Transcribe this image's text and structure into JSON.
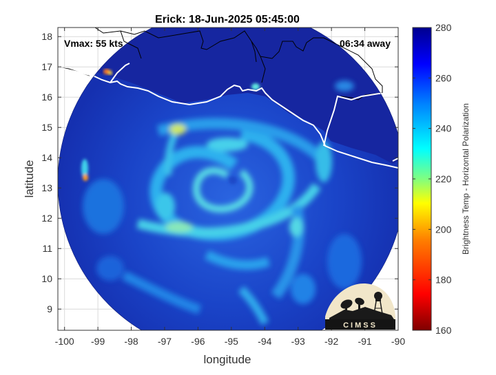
{
  "title": "Erick: 18-Jun-2025 05:45:00",
  "vmax_label": "Vmax: 55 kts",
  "away_label": "06:34 away",
  "map": {
    "xlabel": "longitude",
    "ylabel": "latitude",
    "xlim": [
      -100.2,
      -90
    ],
    "ylim": [
      8.3,
      18.3
    ],
    "xticks": [
      -100,
      -99,
      -98,
      -97,
      -96,
      -95,
      -94,
      -93,
      -92,
      -91,
      -90
    ],
    "yticks": [
      9,
      10,
      11,
      12,
      13,
      14,
      15,
      16,
      17,
      18
    ],
    "swath_center": [
      -95.0,
      13.2
    ],
    "swath_radius_deg": 5.2,
    "storm_center": [
      -95.0,
      13.2
    ]
  },
  "colorbar": {
    "label": "Brightness Temp - Horizontal Polarization",
    "range": [
      160,
      280
    ],
    "ticks": [
      160,
      180,
      200,
      220,
      240,
      260,
      280
    ],
    "colors": [
      "#7f0000",
      "#ff0000",
      "#ff8000",
      "#ffff00",
      "#80ff80",
      "#00ffff",
      "#0080ff",
      "#0000ff",
      "#00008f"
    ]
  },
  "logo": {
    "text": "CIMSS"
  },
  "colors": {
    "background_warm": "#1a2ea8",
    "band_light": "#29a8f0",
    "band_cyan": "#4ee6e8",
    "coast": "#ffffff",
    "land_border": "#000000"
  }
}
